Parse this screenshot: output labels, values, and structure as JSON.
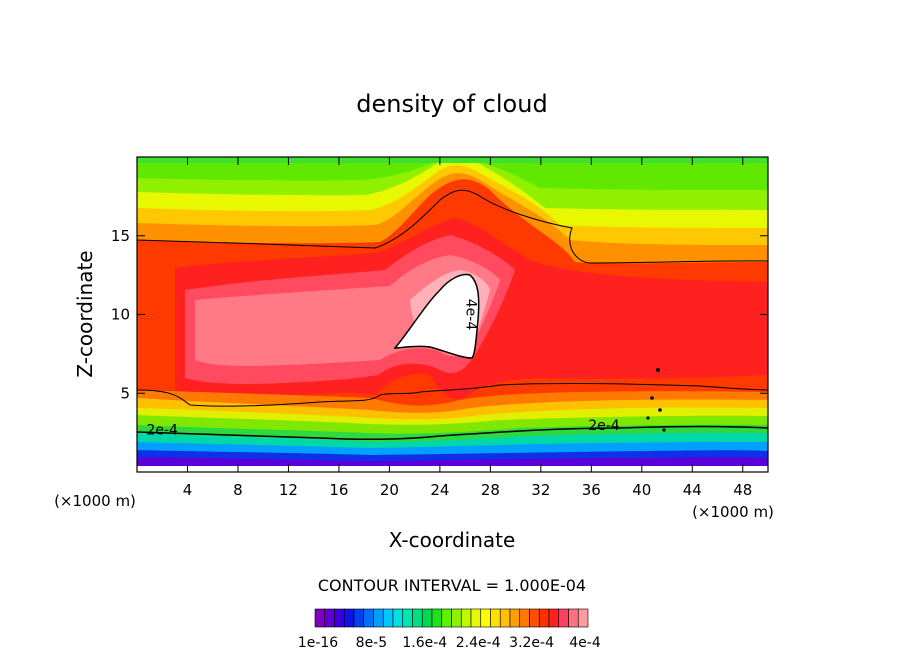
{
  "chart_data": {
    "type": "heatmap",
    "title": "density of cloud",
    "xlabel": "X-coordinate",
    "ylabel": "Z-coordinate",
    "x_unit": "(×1000 m)",
    "y_unit": "(×1000 m)",
    "xlim": [
      0,
      50
    ],
    "ylim": [
      0,
      20
    ],
    "x_ticks": [
      4,
      8,
      12,
      16,
      20,
      24,
      28,
      32,
      36,
      40,
      44,
      48
    ],
    "y_ticks": [
      5,
      10,
      15
    ],
    "contour_interval_text": "CONTOUR INTERVAL = 1.000E-04",
    "contour_labels": [
      {
        "text": "2e-4",
        "x": 2.0,
        "y": 2.7
      },
      {
        "text": "2e-4",
        "x": 37.0,
        "y": 3.0
      },
      {
        "text": "4e-4",
        "x": 26.5,
        "y": 10.0
      }
    ],
    "colorbar": {
      "colors": [
        "#8000c0",
        "#6000d0",
        "#3a00e0",
        "#1010e8",
        "#0040f0",
        "#0070f8",
        "#00a0ff",
        "#00c8ff",
        "#00e0e0",
        "#00e8b0",
        "#00e080",
        "#00d850",
        "#20e020",
        "#60f000",
        "#90f000",
        "#c0f800",
        "#e8f800",
        "#ffff00",
        "#ffe000",
        "#ffc000",
        "#ffa000",
        "#ff7800",
        "#ff5000",
        "#ff3000",
        "#ff2020",
        "#ff4060",
        "#ff7080",
        "#ff9aa0"
      ],
      "tick_labels": [
        "1e-16",
        "8e-5",
        "1.6e-4",
        "2.4e-4",
        "3.2e-4",
        "4e-4"
      ]
    }
  }
}
